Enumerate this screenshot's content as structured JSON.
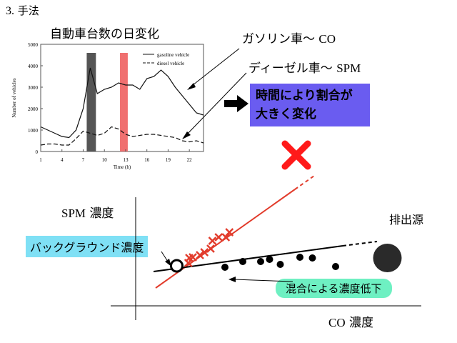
{
  "section_title": {
    "number": "3.",
    "text": "手法"
  },
  "chart_caption": "自動車台数の日変化",
  "labels": {
    "gasoline": {
      "text": "ガソリン車〜",
      "tag": "CO"
    },
    "diesel": {
      "text": "ディーゼル車〜",
      "tag": "SPM"
    },
    "summary": "時間により割合が大きく変化",
    "spm_axis": {
      "tag": "SPM",
      "text": "濃度"
    },
    "co_axis": {
      "tag": "CO",
      "text": "濃度"
    },
    "source": "排出源",
    "background": "バックグラウンド濃度",
    "dilution": "混合による濃度低下"
  },
  "colors": {
    "summary_box": "#6a5cf0",
    "background_label": "#7fe0f5",
    "dilution_label": "#6ef0c2",
    "red_line": "#e23c2c",
    "band_dark": "#555555",
    "band_red": "#f07070"
  },
  "chart_data": {
    "type": "line",
    "xlabel": "Time (h)",
    "ylabel": "Number of vehicles",
    "x": [
      1,
      2,
      3,
      4,
      5,
      6,
      7,
      8,
      9,
      10,
      11,
      12,
      13,
      14,
      15,
      16,
      17,
      18,
      19,
      20,
      21,
      22,
      23,
      24
    ],
    "xticks": [
      1,
      4,
      7,
      10,
      13,
      16,
      19,
      22
    ],
    "yticks": [
      0,
      1000,
      2000,
      3000,
      4000,
      5000
    ],
    "ylim": [
      0,
      5000
    ],
    "series": [
      {
        "name": "gasoline vehicle",
        "style": "solid",
        "values": [
          1150,
          1000,
          850,
          700,
          650,
          1000,
          2000,
          3900,
          2700,
          2900,
          3000,
          3200,
          3100,
          3100,
          2900,
          3400,
          3500,
          3800,
          3500,
          3000,
          2600,
          2200,
          1800,
          1700
        ]
      },
      {
        "name": "diesel vehicle",
        "style": "dashed",
        "values": [
          300,
          350,
          350,
          300,
          300,
          600,
          950,
          850,
          750,
          850,
          1150,
          1050,
          800,
          700,
          750,
          800,
          800,
          750,
          700,
          650,
          500,
          450,
          500,
          400
        ]
      }
    ],
    "highlight_bands": [
      {
        "from": 7.5,
        "to": 8.8,
        "color": "#555555"
      },
      {
        "from": 12.2,
        "to": 13.3,
        "color": "#f07070"
      }
    ]
  },
  "diagram": {
    "red_x_points": [
      [
        0.95,
        0.09
      ],
      [
        1.2,
        0.17
      ],
      [
        1.0,
        0.16
      ],
      [
        1.6,
        0.2
      ],
      [
        1.85,
        0.24
      ],
      [
        2.2,
        0.29
      ],
      [
        2.3,
        0.4
      ],
      [
        2.65,
        0.45
      ],
      [
        3.05,
        0.45
      ],
      [
        3.25,
        0.52
      ]
    ],
    "black_points": [
      [
        3.0,
        0.03
      ],
      [
        4.0,
        0.11
      ],
      [
        5.0,
        0.11
      ],
      [
        5.5,
        0.14
      ],
      [
        6.1,
        0.07
      ],
      [
        7.2,
        0.17
      ],
      [
        7.9,
        0.16
      ],
      [
        9.2,
        0.04
      ]
    ],
    "background_point": [
      0.3,
      0.05
    ],
    "source_point": [
      12.1,
      0.16
    ],
    "big_x_point": [
      7.0,
      1.6
    ]
  }
}
